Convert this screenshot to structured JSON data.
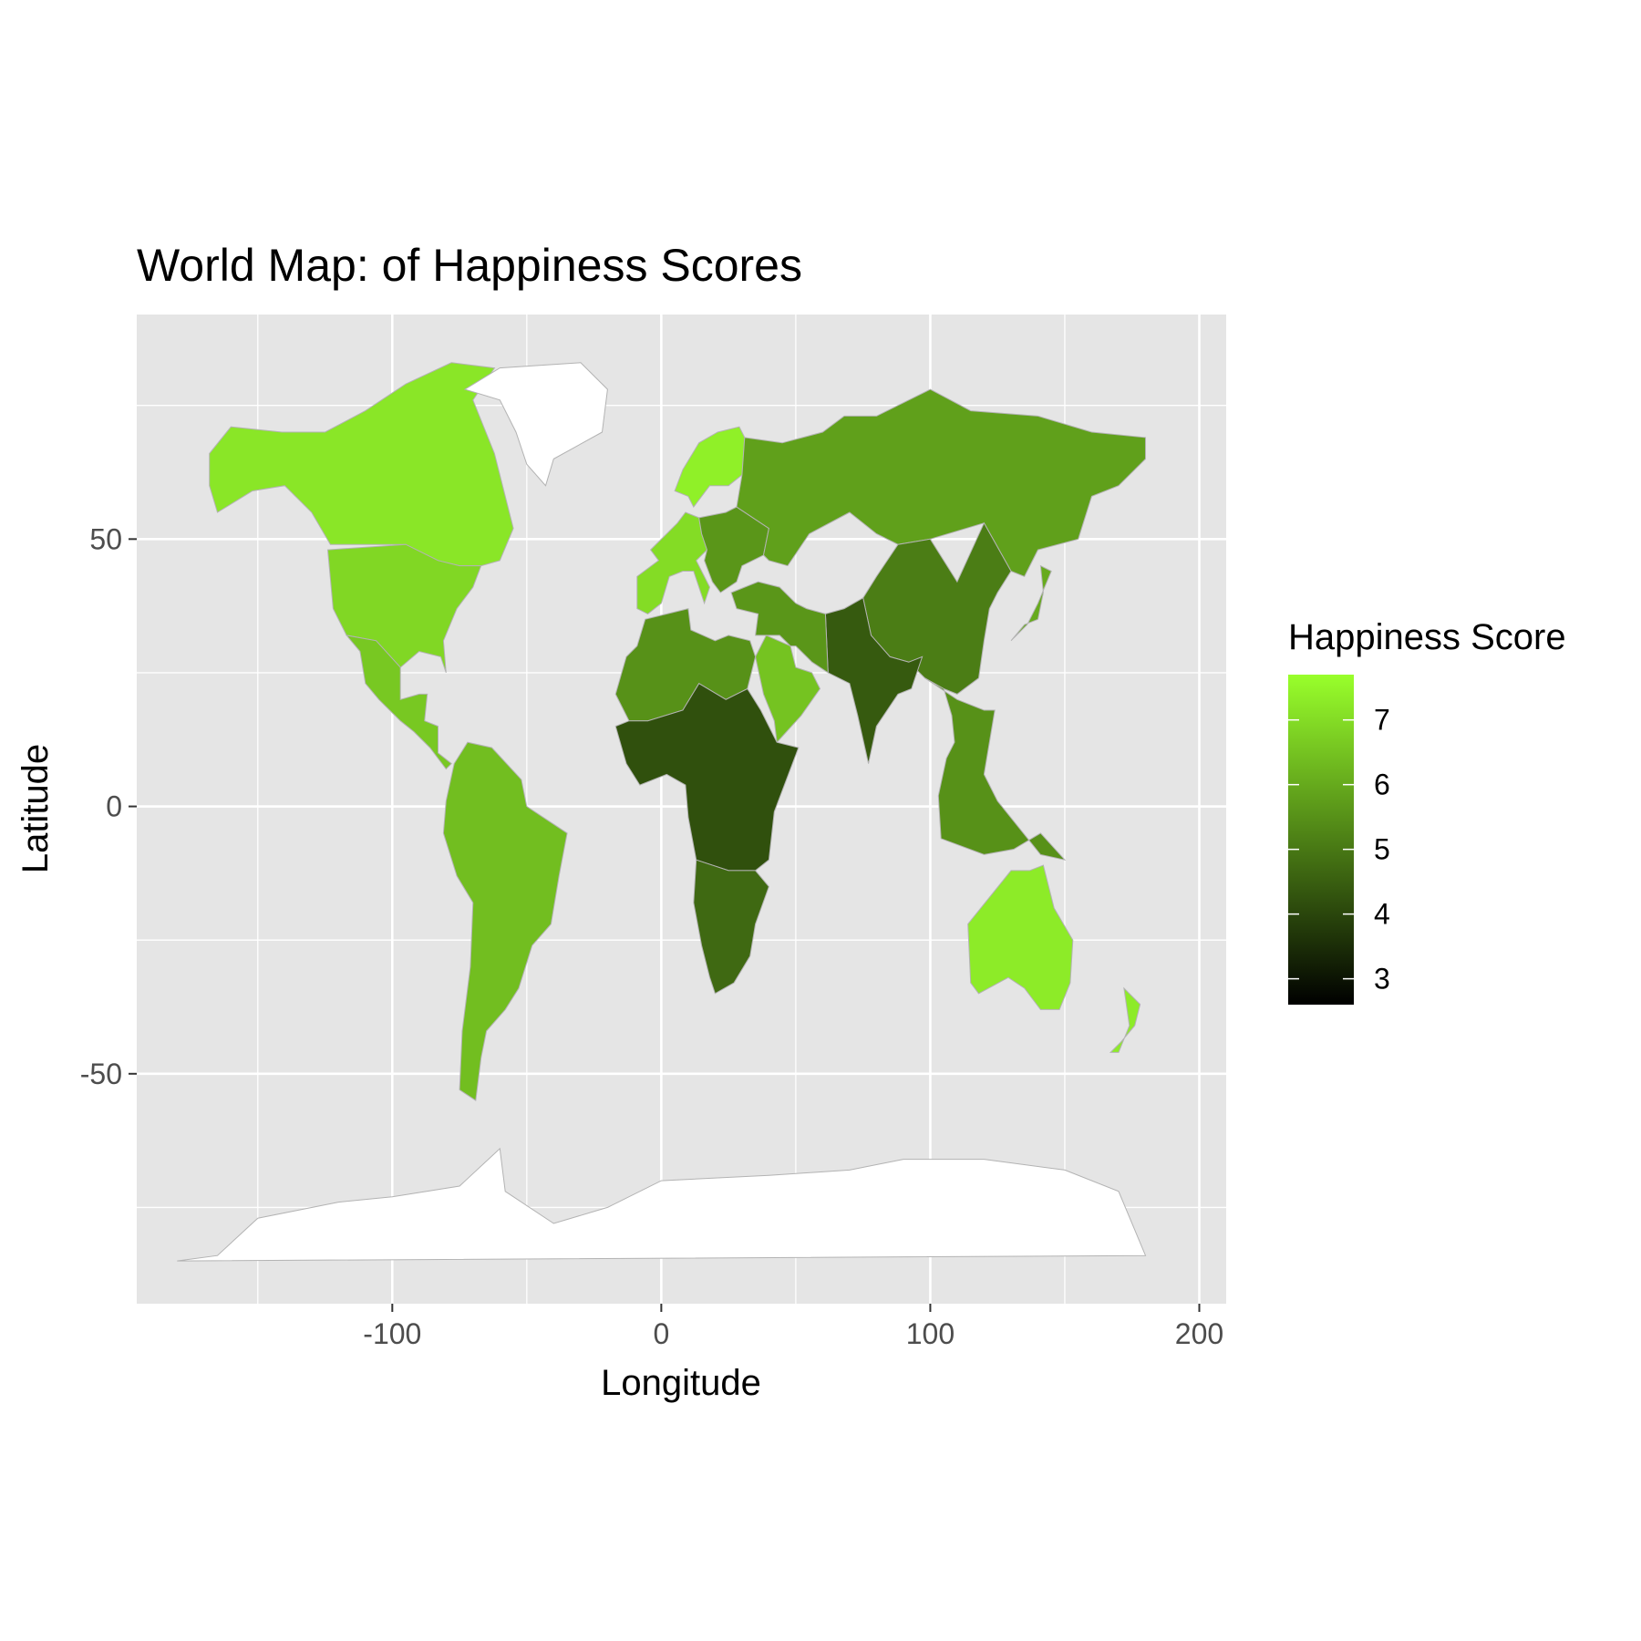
{
  "chart_data": {
    "type": "map",
    "title": "World Map: of Happiness Scores",
    "xlabel": "Longitude",
    "ylabel": "Latitude",
    "xlim": [
      -195,
      210
    ],
    "ylim": [
      -93,
      92
    ],
    "x_ticks": [
      -100,
      0,
      100,
      200
    ],
    "x_tick_labels": [
      "-100",
      "0",
      "100",
      "200"
    ],
    "y_ticks": [
      -50,
      0,
      50
    ],
    "y_tick_labels": [
      "-50",
      "0",
      "50"
    ],
    "grid": true,
    "legend": {
      "title": "Happiness Score",
      "position": "right",
      "min": 2.6,
      "max": 7.7,
      "low_color": "#000000",
      "high_color": "#99ff2b",
      "breaks": [
        3,
        4,
        5,
        6,
        7
      ],
      "break_labels": [
        "3",
        "4",
        "5",
        "6",
        "7"
      ]
    },
    "colors": {
      "panel_background": "#e5e5e5",
      "grid": "#ffffff",
      "missing": "#ffffff",
      "border": "#b3b3b3"
    },
    "regions": [
      {
        "name": "North America",
        "value": 7.2
      },
      {
        "name": "United States",
        "value": 6.9
      },
      {
        "name": "Mexico & Central America",
        "value": 6.6
      },
      {
        "name": "South America",
        "value": 6.4
      },
      {
        "name": "Western Europe",
        "value": 7.0
      },
      {
        "name": "Northern Europe",
        "value": 7.4
      },
      {
        "name": "Eastern Europe",
        "value": 5.6
      },
      {
        "name": "Russia",
        "value": 5.8
      },
      {
        "name": "China",
        "value": 5.1
      },
      {
        "name": "South Asia",
        "value": 4.4
      },
      {
        "name": "Middle East",
        "value": 5.6
      },
      {
        "name": "Arabian Peninsula",
        "value": 6.5
      },
      {
        "name": "North Africa",
        "value": 5.5
      },
      {
        "name": "Sub-Saharan Africa",
        "value": 4.2
      },
      {
        "name": "Southern Africa",
        "value": 4.7
      },
      {
        "name": "Southeast Asia",
        "value": 5.5
      },
      {
        "name": "Japan",
        "value": 6.0
      },
      {
        "name": "Australia",
        "value": 7.3
      },
      {
        "name": "New Zealand",
        "value": 7.3
      },
      {
        "name": "Greenland",
        "value": null
      },
      {
        "name": "Antarctica",
        "value": null
      }
    ]
  }
}
